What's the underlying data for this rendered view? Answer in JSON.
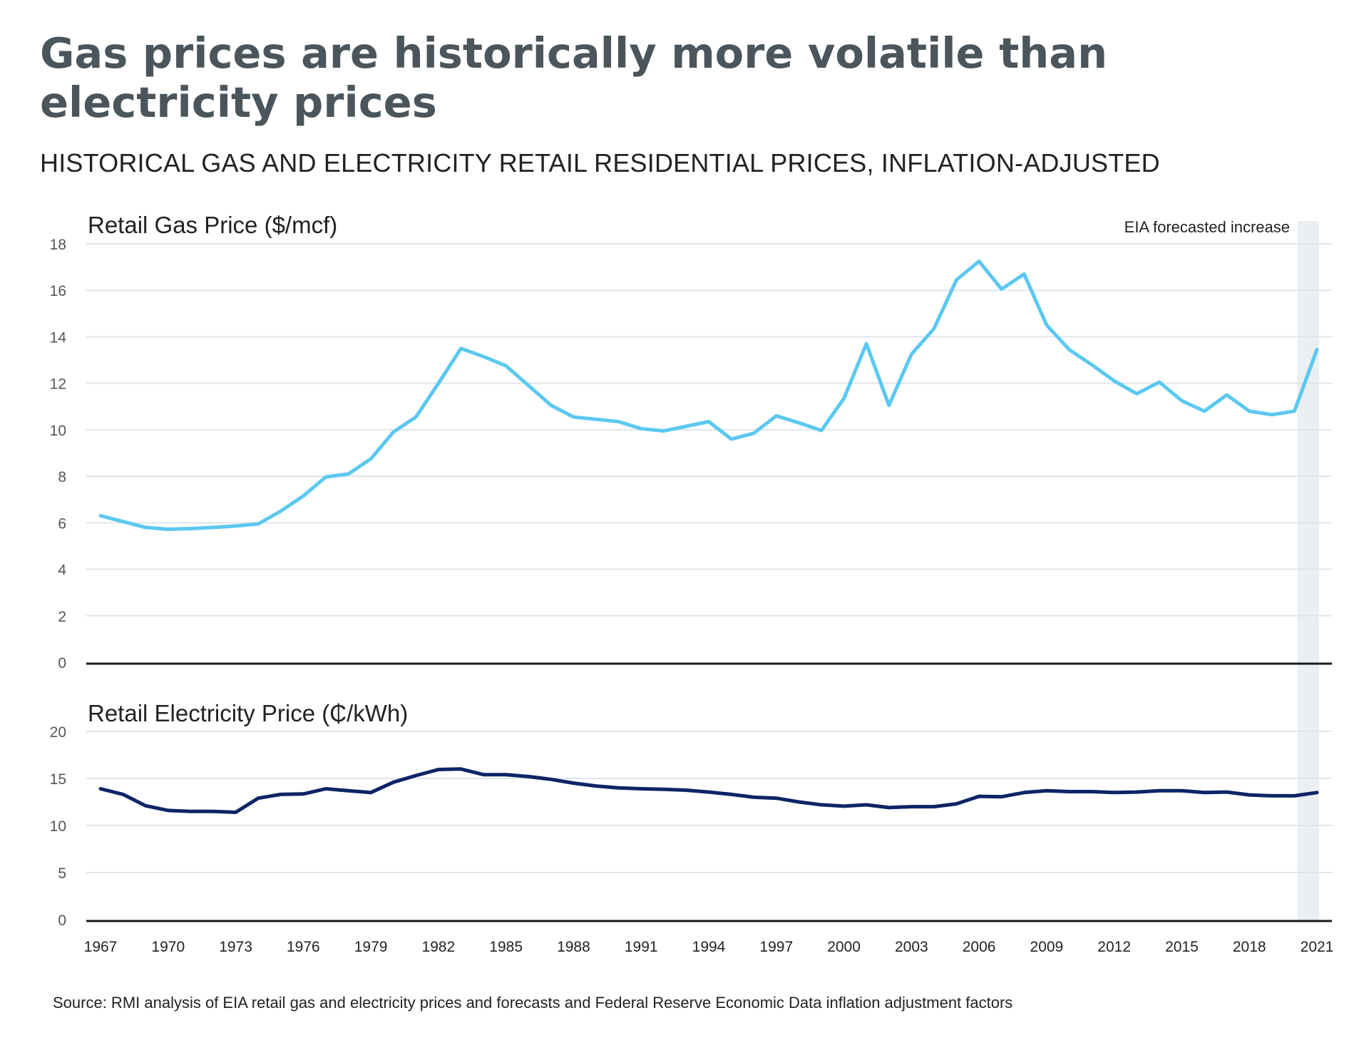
{
  "title": "Gas prices are historically more volatile than electricity prices",
  "subtitle": "HISTORICAL GAS AND ELECTRICITY RETAIL RESIDENTIAL PRICES, INFLATION-ADJUSTED",
  "source": "Source: RMI analysis of EIA retail gas and electricity prices and forecasts and Federal Reserve Economic Data inflation adjustment factors",
  "colors": {
    "gas": "#5bc8f0",
    "electricity": "#0d2466",
    "grid": "#dfe6ea",
    "forecast_band": "#ebeff1",
    "tick_text": "#555555",
    "axis": "#1a1a1a"
  },
  "chart_data": [
    {
      "type": "line",
      "title": "Retail Gas Price ($/mcf)",
      "annotation": "EIA forecasted increase",
      "forecast_range": [
        2020,
        2021
      ],
      "ylim": [
        0,
        18
      ],
      "yticks": [
        0,
        2,
        4,
        6,
        8,
        10,
        12,
        14,
        16,
        18
      ],
      "xlim": [
        1967,
        2021
      ],
      "grid": true,
      "series": [
        {
          "x": [
            1967,
            1968,
            1969,
            1970,
            1971,
            1972,
            1973,
            1974,
            1975,
            1976,
            1977,
            1978,
            1979,
            1980,
            1981,
            1982,
            1983,
            1984,
            1985,
            1986,
            1987,
            1988,
            1989,
            1990,
            1991,
            1992,
            1993,
            1994,
            1995,
            1996,
            1997,
            1998,
            1999,
            2000,
            2001,
            2002,
            2003,
            2004,
            2005,
            2006,
            2007,
            2008,
            2009,
            2010,
            2011,
            2012,
            2013,
            2014,
            2015,
            2016,
            2017,
            2018,
            2019,
            2020,
            2021
          ],
          "values": [
            6.3,
            6.05,
            5.8,
            5.72,
            5.75,
            5.8,
            5.86,
            5.95,
            6.5,
            7.15,
            7.97,
            8.1,
            8.75,
            9.9,
            10.55,
            12.0,
            13.5,
            13.15,
            12.75,
            11.9,
            11.05,
            10.55,
            10.45,
            10.35,
            10.05,
            9.95,
            10.15,
            10.35,
            9.6,
            9.85,
            10.6,
            10.3,
            9.97,
            11.35,
            13.7,
            11.05,
            13.25,
            14.35,
            16.45,
            17.25,
            16.05,
            16.7,
            14.5,
            13.45,
            12.8,
            12.1,
            11.55,
            12.05,
            11.25,
            10.8,
            11.5,
            10.8,
            10.65,
            10.8,
            13.45
          ]
        }
      ]
    },
    {
      "type": "line",
      "title": "Retail Electricity Price (₵/kWh)",
      "forecast_range": [
        2020,
        2021
      ],
      "ylim": [
        0,
        20
      ],
      "yticks": [
        0,
        5,
        10,
        15,
        20
      ],
      "xlim": [
        1967,
        2021
      ],
      "grid": true,
      "xticks": [
        "1967",
        "1970",
        "1973",
        "1976",
        "1979",
        "1982",
        "1985",
        "1988",
        "1991",
        "1994",
        "1997",
        "2000",
        "2003",
        "2006",
        "2009",
        "2012",
        "2015",
        "2018",
        "2021"
      ],
      "series": [
        {
          "x": [
            1967,
            1968,
            1969,
            1970,
            1971,
            1972,
            1973,
            1974,
            1975,
            1976,
            1977,
            1978,
            1979,
            1980,
            1981,
            1982,
            1983,
            1984,
            1985,
            1986,
            1987,
            1988,
            1989,
            1990,
            1991,
            1992,
            1993,
            1994,
            1995,
            1996,
            1997,
            1998,
            1999,
            2000,
            2001,
            2002,
            2003,
            2004,
            2005,
            2006,
            2007,
            2008,
            2009,
            2010,
            2011,
            2012,
            2013,
            2014,
            2015,
            2016,
            2017,
            2018,
            2019,
            2020,
            2021
          ],
          "values": [
            13.9,
            13.3,
            12.1,
            11.6,
            11.5,
            11.5,
            11.4,
            12.9,
            13.3,
            13.35,
            13.9,
            13.7,
            13.5,
            14.6,
            15.3,
            15.95,
            16.0,
            15.4,
            15.4,
            15.2,
            14.9,
            14.5,
            14.2,
            14.0,
            13.9,
            13.85,
            13.75,
            13.55,
            13.3,
            13.0,
            12.9,
            12.5,
            12.2,
            12.05,
            12.2,
            11.9,
            12.0,
            12.0,
            12.3,
            13.1,
            13.05,
            13.5,
            13.7,
            13.6,
            13.6,
            13.5,
            13.55,
            13.7,
            13.7,
            13.5,
            13.55,
            13.25,
            13.15,
            13.15,
            13.5
          ]
        }
      ]
    }
  ]
}
